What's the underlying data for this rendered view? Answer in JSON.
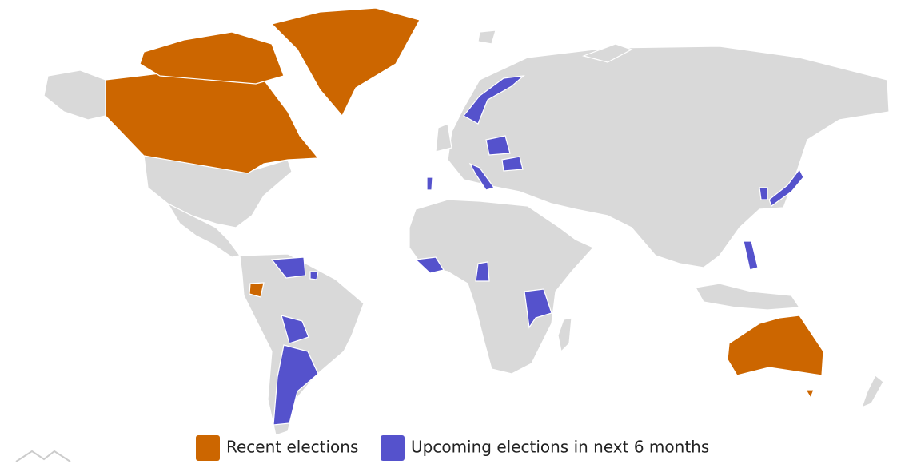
{
  "legend": [
    {
      "name": "Recent elections",
      "color": "#cc6600"
    },
    {
      "name": "Upcoming elections in next 6 months",
      "color": "#5552cc"
    }
  ]
}
